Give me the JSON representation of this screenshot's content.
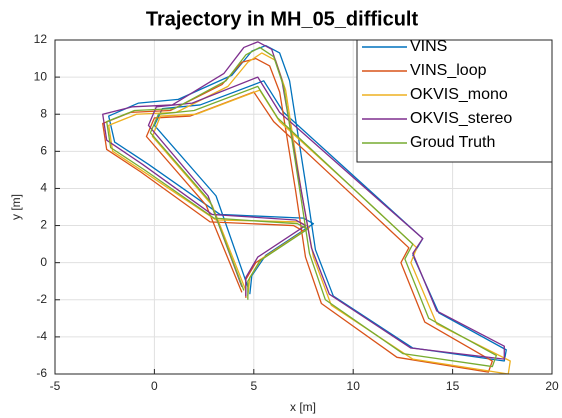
{
  "chart_data": {
    "type": "line",
    "title": "Trajectory in MH_05_difficult",
    "x_label": "x [m]",
    "y_label": "y [m]",
    "xlim": [
      -5,
      20
    ],
    "xticks": [
      -5,
      0,
      5,
      10,
      15,
      20
    ],
    "ylim": [
      -6,
      12
    ],
    "yticks": [
      -6,
      -4,
      -2,
      0,
      2,
      4,
      6,
      8,
      10,
      12
    ],
    "grid": true,
    "legend": "northeast",
    "series": [
      {
        "name": "VINS",
        "color": "#0072bd",
        "x": [
          4.8,
          4.9,
          5.6,
          8.0,
          7.5,
          3.3,
          -0.3,
          -2.0,
          -2.3,
          -0.8,
          1.2,
          3.9,
          4.9,
          5.6,
          6.3,
          6.8,
          7.6,
          8.1,
          9.0,
          13.0,
          17.6,
          17.7,
          14.3,
          13.0,
          13.5,
          10.2,
          6.5,
          5.5,
          2.3,
          0.4,
          0.0,
          3.1,
          4.7
        ],
        "values": [
          -1.7,
          -0.7,
          0.4,
          2.1,
          2.4,
          2.6,
          5.3,
          6.5,
          7.9,
          8.6,
          8.8,
          10.1,
          11.4,
          11.7,
          11.3,
          9.8,
          4.3,
          0.7,
          -1.8,
          -4.6,
          -5.3,
          -4.7,
          -2.7,
          0.4,
          1.3,
          4.5,
          8.1,
          9.8,
          8.5,
          8.3,
          7.4,
          3.6,
          -1.3
        ]
      },
      {
        "name": "VINS_loop",
        "color": "#d95319",
        "x": [
          4.6,
          4.6,
          5.1,
          7.5,
          7.0,
          2.8,
          -0.7,
          -2.4,
          -2.6,
          -1.2,
          0.8,
          3.4,
          4.4,
          5.1,
          5.8,
          6.3,
          7.1,
          7.6,
          8.4,
          12.2,
          16.8,
          17.0,
          13.6,
          12.4,
          12.8,
          9.6,
          6.0,
          5.0,
          1.8,
          0.0,
          -0.4,
          2.6,
          4.4
        ],
        "values": [
          -1.9,
          -0.9,
          0.0,
          1.7,
          2.0,
          2.2,
          4.9,
          6.1,
          7.5,
          8.1,
          8.2,
          9.6,
          10.8,
          11.0,
          10.6,
          9.2,
          3.9,
          0.3,
          -2.2,
          -5.1,
          -5.9,
          -5.3,
          -3.2,
          0.0,
          0.8,
          4.0,
          7.6,
          9.2,
          7.9,
          7.8,
          6.8,
          3.1,
          -1.6
        ]
      },
      {
        "name": "OKVIS_mono",
        "color": "#edb120",
        "x": [
          4.7,
          4.8,
          5.4,
          7.8,
          7.3,
          3.1,
          -0.4,
          -2.1,
          -2.3,
          -0.9,
          1.1,
          3.7,
          4.7,
          5.4,
          6.1,
          6.6,
          7.4,
          8.0,
          8.9,
          13.0,
          17.8,
          17.9,
          14.2,
          12.9,
          13.2,
          10.0,
          6.3,
          5.3,
          2.1,
          0.3,
          -0.1,
          2.9,
          4.6
        ],
        "values": [
          -1.8,
          -0.8,
          0.2,
          1.9,
          2.2,
          2.3,
          4.8,
          6.0,
          7.4,
          8.0,
          8.1,
          9.5,
          10.8,
          11.3,
          10.9,
          9.3,
          3.8,
          0.3,
          -2.3,
          -5.2,
          -6.0,
          -5.3,
          -3.3,
          0.0,
          0.8,
          4.0,
          7.6,
          9.3,
          8.0,
          7.9,
          6.8,
          3.1,
          -1.5
        ]
      },
      {
        "name": "OKVIS_stereo",
        "color": "#7e2f8e",
        "x": [
          4.6,
          4.6,
          5.2,
          7.6,
          7.1,
          2.9,
          -0.6,
          -2.4,
          -2.6,
          -1.1,
          0.9,
          3.5,
          4.5,
          5.2,
          5.9,
          6.4,
          7.3,
          7.9,
          8.8,
          12.9,
          17.6,
          17.6,
          14.2,
          13.0,
          13.5,
          10.1,
          6.3,
          5.2,
          1.9,
          0.1,
          -0.3,
          2.7,
          4.4
        ],
        "values": [
          -1.8,
          -0.8,
          0.3,
          2.0,
          2.3,
          2.6,
          5.3,
          6.6,
          8.0,
          8.4,
          8.5,
          10.2,
          11.6,
          11.9,
          11.5,
          9.9,
          4.4,
          0.8,
          -1.7,
          -4.6,
          -5.2,
          -4.5,
          -2.6,
          0.5,
          1.3,
          4.5,
          8.1,
          10.0,
          8.6,
          8.4,
          7.4,
          3.6,
          -1.3
        ]
      },
      {
        "name": "Groud Truth",
        "color": "#77ac30",
        "x": [
          4.7,
          4.7,
          5.3,
          7.7,
          7.2,
          3.0,
          -0.5,
          -2.2,
          -2.4,
          -1.0,
          1.0,
          3.6,
          4.6,
          5.3,
          6.0,
          6.5,
          7.3,
          7.8,
          8.6,
          12.5,
          17.0,
          17.2,
          13.8,
          12.6,
          13.0,
          9.8,
          6.2,
          5.2,
          2.0,
          0.2,
          -0.2,
          2.8,
          4.5
        ],
        "values": [
          -2.0,
          -1.0,
          0.1,
          1.8,
          2.1,
          2.4,
          5.0,
          6.2,
          7.6,
          8.2,
          8.3,
          9.8,
          11.2,
          11.6,
          11.1,
          9.5,
          4.0,
          0.5,
          -2.0,
          -4.9,
          -5.6,
          -5.0,
          -3.0,
          0.2,
          1.0,
          4.2,
          7.8,
          9.5,
          8.2,
          8.0,
          7.0,
          3.3,
          -1.5
        ]
      }
    ]
  }
}
